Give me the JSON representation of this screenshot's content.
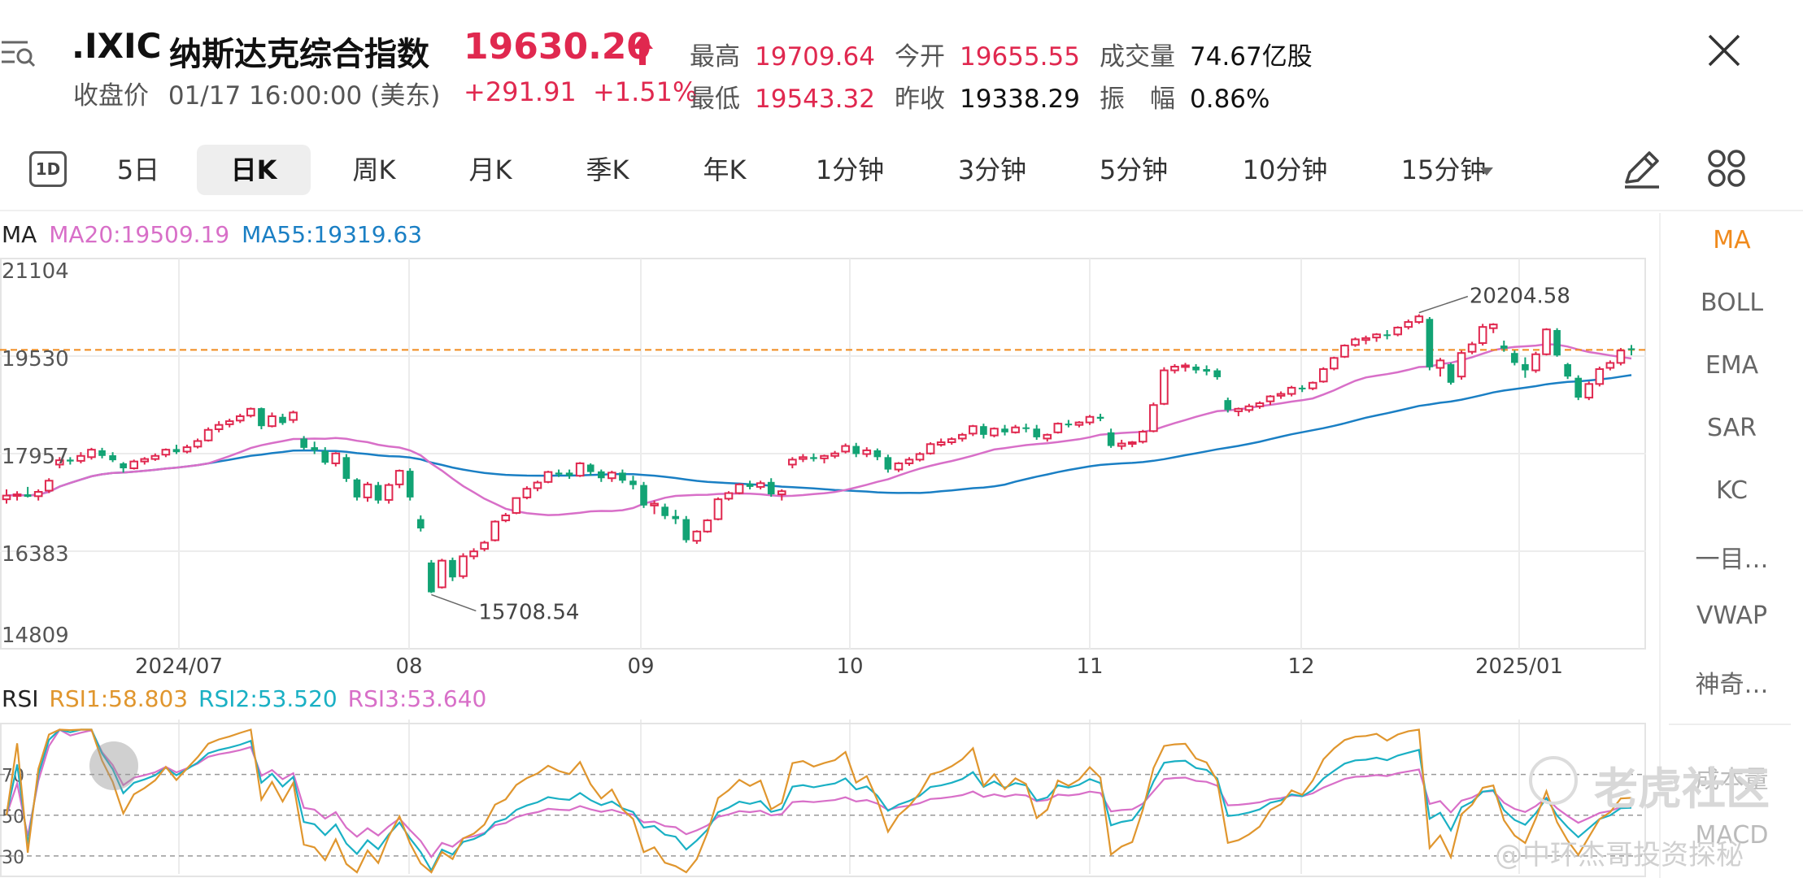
{
  "header": {
    "symbol": ".IXIC",
    "name": "纳斯达克综合指数",
    "price": "19630.20",
    "close_label": "收盘价",
    "close_time": "01/17 16:00:00 (美东)",
    "change": "+291.91",
    "change_pct": "+1.51%",
    "stats": {
      "high_label": "最高",
      "high": "19709.64",
      "open_label": "今开",
      "open": "19655.55",
      "volume_label": "成交量",
      "volume": "74.67亿股",
      "low_label": "最低",
      "low": "19543.32",
      "prev_close_label": "昨收",
      "prev_close": "19338.29",
      "amplitude_label": "振　幅",
      "amplitude": "0.86%"
    },
    "up_color": "#e0284f",
    "down_color": "#12a374"
  },
  "toolbar": {
    "icon_1d": "1D",
    "tabs": [
      "5日",
      "日K",
      "周K",
      "月K",
      "季K",
      "年K",
      "1分钟",
      "3分钟",
      "5分钟",
      "10分钟",
      "15分钟"
    ],
    "active": "日K"
  },
  "sidebar": {
    "items": [
      "MA",
      "BOLL",
      "EMA",
      "SAR",
      "KC",
      "一目…",
      "VWAP",
      "神奇…"
    ],
    "active": "MA",
    "faded_items": [
      "成本量",
      "MACD"
    ]
  },
  "indicators": {
    "ma_label": "MA",
    "ma20": "MA20:19509.19",
    "ma55": "MA55:19319.63",
    "ma20_color": "#d86fc8",
    "ma55_color": "#1a7fc4",
    "rsi_label": "RSI",
    "rsi1": "RSI1:58.803",
    "rsi2": "RSI2:53.520",
    "rsi3": "RSI3:53.640",
    "rsi1_color": "#e0962e",
    "rsi2_color": "#1ab0c4",
    "rsi3_color": "#d86fc8"
  },
  "watermark": {
    "brand": "老虎社区",
    "author": "@中环杰哥投资探秘"
  },
  "chart_data": [
    {
      "type": "candlestick",
      "y_ticks": [
        "21104",
        "19530",
        "17957",
        "16383",
        "14809"
      ],
      "ylim": [
        14809,
        21104
      ],
      "x_ticks": [
        "2024/07",
        "08",
        "09",
        "10",
        "11",
        "12",
        "2025/01"
      ],
      "annotations": [
        {
          "text": "20204.58",
          "kind": "high"
        },
        {
          "text": "15708.54",
          "kind": "low"
        }
      ],
      "current_price_line": 19630.2,
      "candles_ohlc": [
        [
          17220,
          17380,
          17150,
          17280
        ],
        [
          17290,
          17350,
          17200,
          17300
        ],
        [
          17300,
          17420,
          17250,
          17260
        ],
        [
          17270,
          17380,
          17200,
          17340
        ],
        [
          17360,
          17560,
          17320,
          17520
        ],
        [
          17780,
          17900,
          17720,
          17850
        ],
        [
          17860,
          17900,
          17780,
          17830
        ],
        [
          17840,
          17980,
          17800,
          17920
        ],
        [
          17900,
          18050,
          17860,
          18020
        ],
        [
          18010,
          18050,
          17880,
          17920
        ],
        [
          17930,
          17980,
          17820,
          17850
        ],
        [
          17800,
          17820,
          17650,
          17720
        ],
        [
          17720,
          17860,
          17700,
          17830
        ],
        [
          17830,
          17900,
          17780,
          17870
        ],
        [
          17870,
          17960,
          17840,
          17920
        ],
        [
          17940,
          18040,
          17900,
          18020
        ],
        [
          18030,
          18100,
          17950,
          17980
        ],
        [
          17990,
          18100,
          17960,
          18060
        ],
        [
          18070,
          18200,
          18040,
          18160
        ],
        [
          18170,
          18380,
          18150,
          18340
        ],
        [
          18350,
          18480,
          18300,
          18420
        ],
        [
          18430,
          18520,
          18380,
          18480
        ],
        [
          18490,
          18600,
          18450,
          18560
        ],
        [
          18570,
          18700,
          18540,
          18680
        ],
        [
          18690,
          18700,
          18350,
          18400
        ],
        [
          18400,
          18620,
          18380,
          18560
        ],
        [
          18550,
          18600,
          18420,
          18450
        ],
        [
          18500,
          18650,
          18450,
          18620
        ],
        [
          18200,
          18240,
          18020,
          18050
        ],
        [
          18060,
          18150,
          17950,
          18010
        ],
        [
          18000,
          18060,
          17780,
          17810
        ],
        [
          17800,
          17980,
          17750,
          17960
        ],
        [
          17900,
          17950,
          17500,
          17550
        ],
        [
          17540,
          17560,
          17200,
          17250
        ],
        [
          17250,
          17500,
          17180,
          17460
        ],
        [
          17450,
          17500,
          17150,
          17200
        ],
        [
          17210,
          17480,
          17150,
          17450
        ],
        [
          17460,
          17700,
          17400,
          17680
        ],
        [
          17680,
          17720,
          17200,
          17250
        ],
        [
          16900,
          16960,
          16700,
          16750
        ],
        [
          16200,
          16240,
          15708,
          15720
        ],
        [
          15800,
          16260,
          15780,
          16230
        ],
        [
          16240,
          16280,
          15900,
          15960
        ],
        [
          15980,
          16350,
          15940,
          16300
        ],
        [
          16300,
          16430,
          16250,
          16380
        ],
        [
          16420,
          16550,
          16380,
          16520
        ],
        [
          16560,
          16880,
          16540,
          16860
        ],
        [
          16880,
          17000,
          16850,
          16960
        ],
        [
          17000,
          17250,
          16980,
          17240
        ],
        [
          17250,
          17430,
          17220,
          17390
        ],
        [
          17400,
          17520,
          17350,
          17490
        ],
        [
          17500,
          17680,
          17480,
          17660
        ],
        [
          17650,
          17700,
          17580,
          17620
        ],
        [
          17650,
          17700,
          17550,
          17600
        ],
        [
          17600,
          17820,
          17580,
          17800
        ],
        [
          17780,
          17800,
          17600,
          17660
        ],
        [
          17670,
          17700,
          17500,
          17560
        ],
        [
          17560,
          17680,
          17500,
          17650
        ],
        [
          17650,
          17700,
          17480,
          17520
        ],
        [
          17520,
          17600,
          17380,
          17450
        ],
        [
          17450,
          17500,
          17080,
          17120
        ],
        [
          17120,
          17200,
          16980,
          17150
        ],
        [
          17100,
          17150,
          16900,
          16950
        ],
        [
          16950,
          17050,
          16820,
          16900
        ],
        [
          16900,
          16950,
          16520,
          16560
        ],
        [
          16550,
          16720,
          16500,
          16700
        ],
        [
          16700,
          16900,
          16680,
          16880
        ],
        [
          16900,
          17250,
          16880,
          17220
        ],
        [
          17230,
          17350,
          17200,
          17320
        ],
        [
          17320,
          17480,
          17300,
          17460
        ],
        [
          17470,
          17520,
          17380,
          17420
        ],
        [
          17420,
          17520,
          17380,
          17480
        ],
        [
          17500,
          17560,
          17260,
          17300
        ],
        [
          17300,
          17380,
          17200,
          17350
        ],
        [
          17780,
          17900,
          17720,
          17860
        ],
        [
          17870,
          17950,
          17820,
          17900
        ],
        [
          17900,
          17960,
          17830,
          17870
        ],
        [
          17880,
          17940,
          17800,
          17920
        ],
        [
          17920,
          18000,
          17880,
          17960
        ],
        [
          17990,
          18120,
          17960,
          18080
        ],
        [
          18080,
          18130,
          17900,
          17950
        ],
        [
          17950,
          18060,
          17900,
          18010
        ],
        [
          18010,
          18040,
          17850,
          17900
        ],
        [
          17900,
          17940,
          17650,
          17700
        ],
        [
          17700,
          17820,
          17660,
          17800
        ],
        [
          17800,
          17900,
          17760,
          17860
        ],
        [
          17860,
          17980,
          17830,
          17950
        ],
        [
          17960,
          18140,
          17940,
          18110
        ],
        [
          18100,
          18200,
          18070,
          18140
        ],
        [
          18140,
          18220,
          18100,
          18190
        ],
        [
          18200,
          18290,
          18150,
          18260
        ],
        [
          18280,
          18420,
          18240,
          18400
        ],
        [
          18400,
          18440,
          18200,
          18260
        ],
        [
          18250,
          18380,
          18220,
          18360
        ],
        [
          18360,
          18420,
          18250,
          18300
        ],
        [
          18300,
          18420,
          18280,
          18380
        ],
        [
          18380,
          18440,
          18300,
          18360
        ],
        [
          18360,
          18420,
          18180,
          18220
        ],
        [
          18200,
          18280,
          18150,
          18260
        ],
        [
          18300,
          18460,
          18280,
          18440
        ],
        [
          18440,
          18500,
          18380,
          18420
        ],
        [
          18420,
          18480,
          18380,
          18460
        ],
        [
          18460,
          18580,
          18420,
          18550
        ],
        [
          18550,
          18600,
          18480,
          18520
        ],
        [
          18300,
          18360,
          18050,
          18080
        ],
        [
          18080,
          18180,
          18020,
          18120
        ],
        [
          18120,
          18160,
          18060,
          18140
        ],
        [
          18150,
          18340,
          18120,
          18310
        ],
        [
          18320,
          18780,
          18300,
          18740
        ],
        [
          18760,
          19350,
          18740,
          19300
        ],
        [
          19300,
          19400,
          19250,
          19360
        ],
        [
          19360,
          19420,
          19280,
          19380
        ],
        [
          19360,
          19400,
          19250,
          19300
        ],
        [
          19320,
          19380,
          19220,
          19280
        ],
        [
          19300,
          19330,
          19150,
          19190
        ],
        [
          18820,
          18860,
          18620,
          18660
        ],
        [
          18640,
          18700,
          18560,
          18680
        ],
        [
          18660,
          18760,
          18620,
          18720
        ],
        [
          18720,
          18800,
          18680,
          18770
        ],
        [
          18800,
          18900,
          18740,
          18880
        ],
        [
          18890,
          18960,
          18840,
          18920
        ],
        [
          18920,
          19050,
          18880,
          19020
        ],
        [
          19020,
          19060,
          18950,
          19000
        ],
        [
          19010,
          19120,
          18980,
          19100
        ],
        [
          19120,
          19350,
          19100,
          19320
        ],
        [
          19330,
          19520,
          19300,
          19500
        ],
        [
          19520,
          19720,
          19500,
          19700
        ],
        [
          19710,
          19830,
          19680,
          19800
        ],
        [
          19790,
          19860,
          19720,
          19820
        ],
        [
          19830,
          19900,
          19760,
          19880
        ],
        [
          19880,
          19950,
          19800,
          19860
        ],
        [
          19880,
          20010,
          19850,
          19990
        ],
        [
          20000,
          20120,
          19960,
          20080
        ],
        [
          20080,
          20204,
          20050,
          20170
        ],
        [
          20130,
          20160,
          19300,
          19350
        ],
        [
          19340,
          19500,
          19200,
          19460
        ],
        [
          19400,
          19420,
          19070,
          19100
        ],
        [
          19200,
          19620,
          19150,
          19580
        ],
        [
          19600,
          19760,
          19560,
          19720
        ],
        [
          19740,
          20050,
          19700,
          20000
        ],
        [
          19980,
          20060,
          19900,
          20040
        ],
        [
          19700,
          19780,
          19600,
          19650
        ],
        [
          19580,
          19620,
          19380,
          19420
        ],
        [
          19400,
          19510,
          19180,
          19300
        ],
        [
          19300,
          19600,
          19260,
          19560
        ],
        [
          19560,
          19980,
          19540,
          19960
        ],
        [
          19950,
          19980,
          19520,
          19540
        ],
        [
          19400,
          19420,
          19160,
          19200
        ],
        [
          19180,
          19220,
          18820,
          18860
        ],
        [
          18860,
          19120,
          18820,
          19080
        ],
        [
          19080,
          19360,
          19040,
          19320
        ],
        [
          19340,
          19460,
          19300,
          19420
        ],
        [
          19420,
          19660,
          19380,
          19620
        ],
        [
          19655,
          19709,
          19543,
          19630
        ]
      ]
    },
    {
      "type": "line",
      "title": "RSI",
      "y_ticks": [
        "70",
        "50",
        "30"
      ],
      "ylim": [
        20,
        95
      ]
    }
  ]
}
